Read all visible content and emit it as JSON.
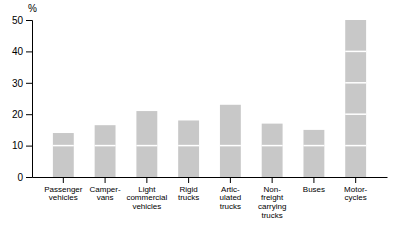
{
  "chart_data": {
    "type": "bar",
    "stacked": true,
    "grid": false,
    "ylabel": "%",
    "categories": [
      "Passenger\nvehicles",
      "Camper-\nvans",
      "Light\ncommercial\nvehicles",
      "Rigid\ntrucks",
      "Artic-\nulated\ntrucks",
      "Non-\nfreight\ncarrying\ntrucks",
      "Buses",
      "Motor-\ncycles"
    ],
    "series": [
      {
        "color": "#c8c8c8",
        "values": [
          10,
          10,
          10,
          10,
          10,
          10,
          10,
          10
        ]
      },
      {
        "color": "#c8c8c8",
        "values": [
          4,
          6.5,
          11,
          8,
          13,
          7,
          5,
          40
        ]
      }
    ],
    "separators": [
      {
        "category": "Motor-\ncycles",
        "values": [
          20,
          30,
          40
        ]
      }
    ],
    "ylim": [
      0,
      50
    ],
    "yticks": [
      0,
      10,
      20,
      30,
      40,
      50
    ]
  }
}
